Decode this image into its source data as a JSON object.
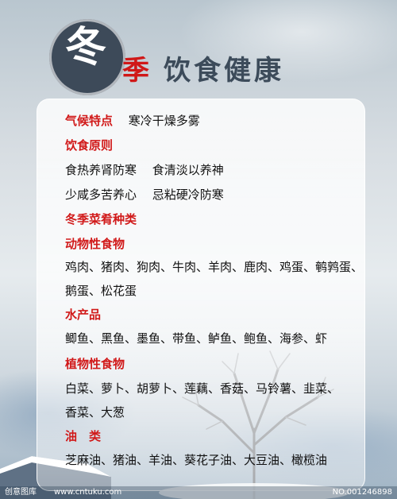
{
  "title": {
    "char1": "冬",
    "char2": "季",
    "rest": "饮食健康"
  },
  "lines": [
    {
      "label": "气候特点",
      "text": "寒冷干燥多雾"
    },
    {
      "label": "饮食原则",
      "text": ""
    },
    {
      "label": "",
      "text": "食热养肾防寒　 食清淡以养神"
    },
    {
      "label": "",
      "text": "少咸多苦养心　 忌粘硬冷防寒"
    },
    {
      "label": "冬季菜肴种类",
      "text": ""
    },
    {
      "label": "动物性食物",
      "text": ""
    },
    {
      "label": "",
      "text": "鸡肉、猪肉、狗肉、牛肉、羊肉、鹿肉、鸡蛋、鹌鹑蛋、"
    },
    {
      "label": "",
      "text": "鹅蛋、松花蛋"
    },
    {
      "label": "水产品",
      "text": ""
    },
    {
      "label": "",
      "text": "鲫鱼、黑鱼、墨鱼、带鱼、鲈鱼、鲍鱼、海参、虾"
    },
    {
      "label": "植物性食物",
      "text": ""
    },
    {
      "label": "",
      "text": "白菜、萝卜、胡萝卜、莲藕、香菇、马铃薯、韭菜、"
    },
    {
      "label": "",
      "text": "香菜、大葱"
    },
    {
      "label": "油　类",
      "text": ""
    },
    {
      "label": "",
      "text": "芝麻油、猪油、羊油、葵花子油、大豆油、橄榄油"
    }
  ],
  "footer": {
    "left": "创意图库",
    "mid": "www.cntuku.com",
    "right": "NO.001246898"
  }
}
